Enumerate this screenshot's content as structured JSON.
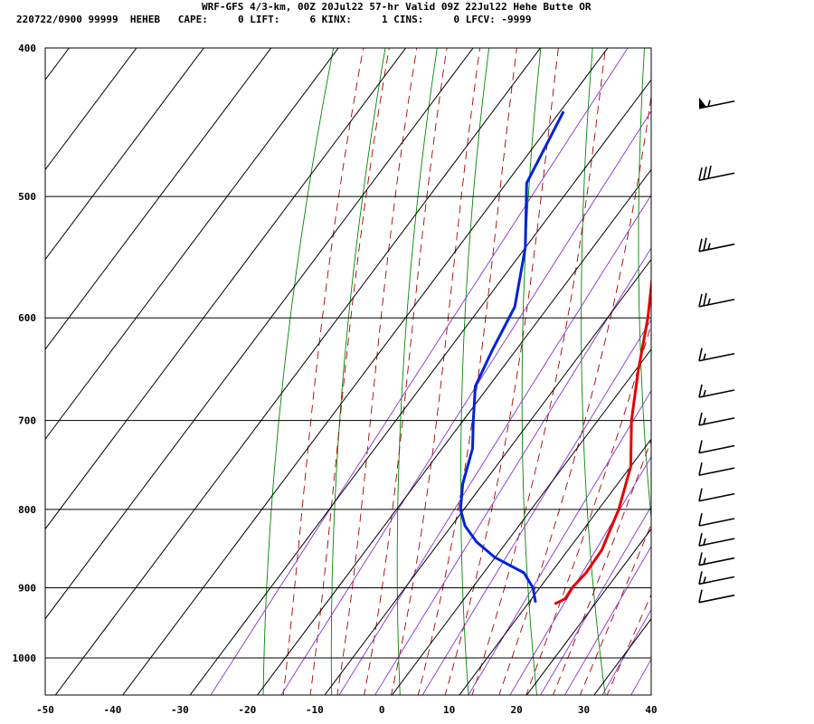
{
  "header": {
    "line1": "WRF-GFS 4/3-km, 00Z 20Jul22 57-hr Valid 09Z 22Jul22 Hehe Butte OR",
    "line2": "220722/0900 99999  HEHEB   CAPE:     0 LIFT:     6 KINX:     1 CINS:     0 LFCV: -9999"
  },
  "chart_data": {
    "type": "line",
    "subtype": "skew-t log-p sounding",
    "xlim": [
      -50,
      40
    ],
    "x_ticks": [
      -50,
      -40,
      -30,
      -20,
      -10,
      0,
      10,
      20,
      30,
      40
    ],
    "p_ticks": [
      400,
      500,
      600,
      700,
      800,
      900,
      1000
    ],
    "p_range": [
      400,
      1040
    ],
    "series": [
      {
        "color": "#e60000",
        "role": "temperature",
        "points": [
          {
            "p": 922,
            "t": 14.0
          },
          {
            "p": 915,
            "t": 15.0
          },
          {
            "p": 900,
            "t": 14.8
          },
          {
            "p": 880,
            "t": 15.2
          },
          {
            "p": 850,
            "t": 15.0
          },
          {
            "p": 825,
            "t": 14.0
          },
          {
            "p": 800,
            "t": 13.0
          },
          {
            "p": 750,
            "t": 10.0
          },
          {
            "p": 700,
            "t": 5.0
          },
          {
            "p": 650,
            "t": 0.5
          },
          {
            "p": 600,
            "t": -4.0
          },
          {
            "p": 550,
            "t": -9.5
          },
          {
            "p": 500,
            "t": -14.0
          },
          {
            "p": 470,
            "t": -16.5
          },
          {
            "p": 440,
            "t": -18.5
          }
        ]
      },
      {
        "color": "#0022dd",
        "role": "dewpoint",
        "points": [
          {
            "p": 920,
            "t": 11.0
          },
          {
            "p": 900,
            "t": 9.0
          },
          {
            "p": 880,
            "t": 6.0
          },
          {
            "p": 860,
            "t": 0.0
          },
          {
            "p": 840,
            "t": -4.5
          },
          {
            "p": 820,
            "t": -8.0
          },
          {
            "p": 800,
            "t": -10.5
          },
          {
            "p": 770,
            "t": -13.0
          },
          {
            "p": 730,
            "t": -15.5
          },
          {
            "p": 700,
            "t": -18.5
          },
          {
            "p": 665,
            "t": -22.0
          },
          {
            "p": 630,
            "t": -23.5
          },
          {
            "p": 590,
            "t": -25.0
          },
          {
            "p": 540,
            "t": -30.0
          },
          {
            "p": 490,
            "t": -37.0
          },
          {
            "p": 440,
            "t": -39.5
          }
        ]
      }
    ],
    "wind_barbs": [
      {
        "p": 438,
        "speed": 55
      },
      {
        "p": 488,
        "speed": 30
      },
      {
        "p": 543,
        "speed": 25
      },
      {
        "p": 590,
        "speed": 25
      },
      {
        "p": 640,
        "speed": 15
      },
      {
        "p": 676,
        "speed": 15
      },
      {
        "p": 705,
        "speed": 15
      },
      {
        "p": 735,
        "speed": 10
      },
      {
        "p": 760,
        "speed": 10
      },
      {
        "p": 790,
        "speed": 10
      },
      {
        "p": 820,
        "speed": 10
      },
      {
        "p": 845,
        "speed": 15
      },
      {
        "p": 870,
        "speed": 15
      },
      {
        "p": 895,
        "speed": 15
      },
      {
        "p": 920,
        "speed": 10
      }
    ],
    "legend": "none",
    "grid": true
  }
}
